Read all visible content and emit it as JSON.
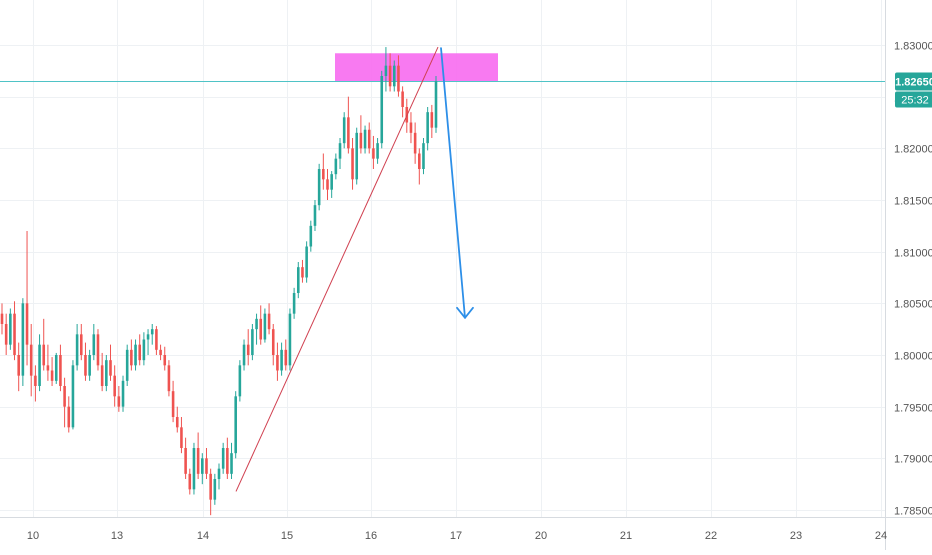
{
  "chart_data": {
    "type": "candlestick",
    "timeframe_note": "intraday candles, ~10 trading days",
    "x_tick_labels": [
      "10",
      "13",
      "14",
      "15",
      "16",
      "17",
      "20",
      "21",
      "22",
      "23",
      "24"
    ],
    "y_tick_labels": [
      "1.83000",
      "1.82500",
      "1.82000",
      "1.81500",
      "1.81000",
      "1.80500",
      "1.80000",
      "1.79500",
      "1.79000",
      "1.78500"
    ],
    "ylim": [
      1.7845,
      1.8345
    ],
    "grid": true,
    "current_price_label": "1.82650",
    "countdown_label": "25:32",
    "current_price": 1.8265,
    "colors": {
      "up": "#26a69a",
      "down": "#ef5350",
      "grid": "#eef1f4",
      "axis_text": "#555555",
      "price_line": "#4fc3c6",
      "zone": "#f76bf0",
      "trendline": "#d04050",
      "arrow": "#2d8fe8",
      "price_tag": "#26a69a"
    },
    "annotations": {
      "resistance_zone": {
        "x_start": "16",
        "x_end": "17",
        "y_low": 1.8265,
        "y_high": 1.8292
      },
      "trendline": {
        "from": {
          "day": "14",
          "price": 1.7868
        },
        "to": {
          "day": "16",
          "price": 1.8298
        }
      },
      "forecast_arrow": {
        "from": {
          "day": "16",
          "price": 1.8297
        },
        "to": {
          "day": "17",
          "price": 1.8036
        }
      }
    },
    "candles": [
      [
        1.804,
        1.805,
        1.802,
        1.803
      ],
      [
        1.803,
        1.804,
        1.8,
        1.801
      ],
      [
        1.801,
        1.8045,
        1.8005,
        1.804
      ],
      [
        1.804,
        1.8052,
        1.7995,
        1.8
      ],
      [
        1.8,
        1.8012,
        1.7965,
        1.798
      ],
      [
        1.798,
        1.8055,
        1.797,
        1.805
      ],
      [
        1.805,
        1.812,
        1.799,
        1.801
      ],
      [
        1.801,
        1.803,
        1.796,
        1.798
      ],
      [
        1.798,
        1.799,
        1.7955,
        1.797
      ],
      [
        1.797,
        1.802,
        1.7965,
        1.801
      ],
      [
        1.801,
        1.8035,
        1.7985,
        1.799
      ],
      [
        1.799,
        1.801,
        1.7975,
        1.7985
      ],
      [
        1.7985,
        1.7998,
        1.797,
        1.7975
      ],
      [
        1.7975,
        1.8002,
        1.7972,
        1.8
      ],
      [
        1.8,
        1.801,
        1.7965,
        1.797
      ],
      [
        1.797,
        1.7978,
        1.793,
        1.795
      ],
      [
        1.795,
        1.796,
        1.7925,
        1.793
      ],
      [
        1.793,
        1.7995,
        1.7928,
        1.799
      ],
      [
        1.799,
        1.803,
        1.7985,
        1.802
      ],
      [
        1.802,
        1.803,
        1.7995,
        1.8
      ],
      [
        1.8,
        1.8012,
        1.7975,
        1.798
      ],
      [
        1.798,
        1.8005,
        1.7975,
        1.8
      ],
      [
        1.8,
        1.803,
        1.7995,
        1.802
      ],
      [
        1.802,
        1.8025,
        1.7985,
        1.799
      ],
      [
        1.799,
        1.8002,
        1.7965,
        1.797
      ],
      [
        1.797,
        1.8,
        1.7965,
        1.7995
      ],
      [
        1.7995,
        1.801,
        1.7975,
        1.798
      ],
      [
        1.798,
        1.799,
        1.795,
        1.796
      ],
      [
        1.796,
        1.797,
        1.7945,
        1.795
      ],
      [
        1.795,
        1.798,
        1.7945,
        1.7975
      ],
      [
        1.7975,
        1.801,
        1.797,
        1.8005
      ],
      [
        1.8005,
        1.8015,
        1.7985,
        1.799
      ],
      [
        1.799,
        1.8015,
        1.7985,
        1.801
      ],
      [
        1.801,
        1.802,
        1.799,
        1.7995
      ],
      [
        1.7995,
        1.8022,
        1.799,
        1.8015
      ],
      [
        1.8015,
        1.8025,
        1.8,
        1.802
      ],
      [
        1.802,
        1.803,
        1.801,
        1.8025
      ],
      [
        1.8025,
        1.8028,
        1.8,
        1.8005
      ],
      [
        1.8005,
        1.801,
        1.7995,
        1.8
      ],
      [
        1.8,
        1.8008,
        1.7985,
        1.799
      ],
      [
        1.799,
        1.7995,
        1.796,
        1.7965
      ],
      [
        1.7965,
        1.7975,
        1.7935,
        1.794
      ],
      [
        1.794,
        1.795,
        1.7925,
        1.793
      ],
      [
        1.793,
        1.794,
        1.7905,
        1.791
      ],
      [
        1.791,
        1.792,
        1.788,
        1.7885
      ],
      [
        1.7885,
        1.789,
        1.7865,
        1.787
      ],
      [
        1.787,
        1.7915,
        1.7865,
        1.791
      ],
      [
        1.791,
        1.7925,
        1.788,
        1.7885
      ],
      [
        1.7885,
        1.7905,
        1.7875,
        1.79
      ],
      [
        1.79,
        1.791,
        1.788,
        1.7885
      ],
      [
        1.7885,
        1.789,
        1.7845,
        1.786
      ],
      [
        1.786,
        1.7885,
        1.7855,
        1.788
      ],
      [
        1.788,
        1.7895,
        1.787,
        1.789
      ],
      [
        1.789,
        1.7915,
        1.7885,
        1.791
      ],
      [
        1.791,
        1.792,
        1.788,
        1.7885
      ],
      [
        1.7885,
        1.7915,
        1.788,
        1.7905
      ],
      [
        1.7905,
        1.7965,
        1.79,
        1.796
      ],
      [
        1.796,
        1.7995,
        1.7955,
        1.799
      ],
      [
        1.799,
        1.8015,
        1.7985,
        1.801
      ],
      [
        1.801,
        1.8025,
        1.799,
        1.8
      ],
      [
        1.8,
        1.803,
        1.7995,
        1.8025
      ],
      [
        1.8025,
        1.804,
        1.801,
        1.8035
      ],
      [
        1.8035,
        1.8048,
        1.801,
        1.8015
      ],
      [
        1.8015,
        1.8045,
        1.8012,
        1.804
      ],
      [
        1.804,
        1.805,
        1.802,
        1.8025
      ],
      [
        1.8025,
        1.803,
        1.799,
        1.8
      ],
      [
        1.8,
        1.8012,
        1.7975,
        1.7985
      ],
      [
        1.7985,
        1.8012,
        1.798,
        1.8005
      ],
      [
        1.8005,
        1.8015,
        1.7985,
        1.799
      ],
      [
        1.799,
        1.8045,
        1.7985,
        1.804
      ],
      [
        1.804,
        1.8065,
        1.8035,
        1.806
      ],
      [
        1.806,
        1.809,
        1.8055,
        1.8085
      ],
      [
        1.8085,
        1.8092,
        1.807,
        1.8075
      ],
      [
        1.8075,
        1.811,
        1.807,
        1.8105
      ],
      [
        1.8105,
        1.813,
        1.81,
        1.8125
      ],
      [
        1.8125,
        1.815,
        1.812,
        1.8145
      ],
      [
        1.8145,
        1.8185,
        1.814,
        1.818
      ],
      [
        1.818,
        1.8195,
        1.816,
        1.817
      ],
      [
        1.817,
        1.818,
        1.815,
        1.816
      ],
      [
        1.816,
        1.8178,
        1.8152,
        1.8175
      ],
      [
        1.8175,
        1.8195,
        1.817,
        1.819
      ],
      [
        1.819,
        1.821,
        1.818,
        1.8205
      ],
      [
        1.8205,
        1.8235,
        1.82,
        1.823
      ],
      [
        1.823,
        1.825,
        1.8195,
        1.82
      ],
      [
        1.82,
        1.821,
        1.816,
        1.817
      ],
      [
        1.817,
        1.822,
        1.8165,
        1.8215
      ],
      [
        1.8215,
        1.8232,
        1.8195,
        1.82
      ],
      [
        1.82,
        1.8222,
        1.8195,
        1.8218
      ],
      [
        1.8218,
        1.8225,
        1.8195,
        1.82
      ],
      [
        1.82,
        1.8212,
        1.818,
        1.819
      ],
      [
        1.819,
        1.821,
        1.8185,
        1.8205
      ],
      [
        1.8205,
        1.8275,
        1.82,
        1.827
      ],
      [
        1.827,
        1.8298,
        1.8255,
        1.828
      ],
      [
        1.828,
        1.8292,
        1.8255,
        1.826
      ],
      [
        1.826,
        1.8285,
        1.8255,
        1.828
      ],
      [
        1.828,
        1.829,
        1.825,
        1.8255
      ],
      [
        1.8255,
        1.826,
        1.823,
        1.824
      ],
      [
        1.824,
        1.8248,
        1.8215,
        1.8225
      ],
      [
        1.8225,
        1.8235,
        1.8205,
        1.8215
      ],
      [
        1.8215,
        1.8225,
        1.8185,
        1.8195
      ],
      [
        1.8195,
        1.82,
        1.8165,
        1.818
      ],
      [
        1.818,
        1.821,
        1.8175,
        1.8205
      ],
      [
        1.8205,
        1.824,
        1.8198,
        1.8235
      ],
      [
        1.8235,
        1.8242,
        1.821,
        1.822
      ],
      [
        1.822,
        1.827,
        1.8215,
        1.8265
      ]
    ]
  }
}
